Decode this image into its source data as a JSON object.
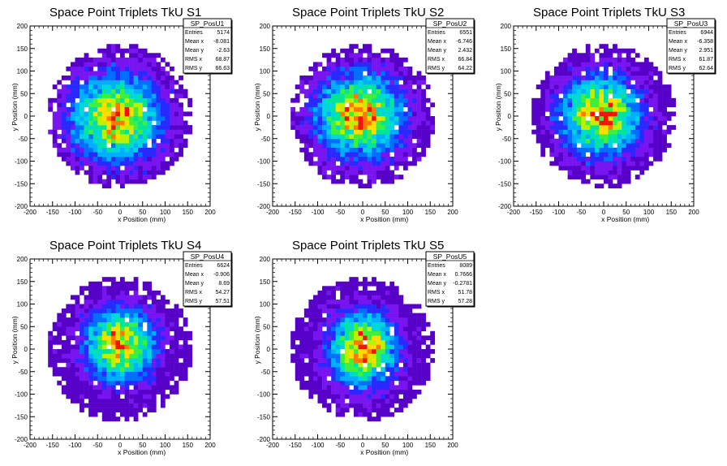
{
  "chart_data": [
    {
      "type": "heatmap",
      "title": "Space Point Triplets TkU S1",
      "xlabel": "x Position (mm)",
      "ylabel": "y Position (mm)",
      "xlim": [
        -200,
        200
      ],
      "ylim": [
        -200,
        200
      ],
      "xticks": [
        -200,
        -150,
        -100,
        -50,
        0,
        50,
        100,
        150,
        200
      ],
      "yticks": [
        -200,
        -150,
        -100,
        -50,
        0,
        50,
        100,
        150,
        200
      ],
      "stats": {
        "name": "SP_PosU1",
        "rows": [
          [
            "Entries",
            "5174"
          ],
          [
            "Mean x",
            "-8.081"
          ],
          [
            "Mean y",
            "-2.63"
          ],
          [
            "RMS x",
            "68.87"
          ],
          [
            "RMS y",
            "66.63"
          ]
        ]
      },
      "distribution": {
        "center_x": -8.081,
        "center_y": -2.63,
        "rms_x": 68.87,
        "rms_y": 66.63,
        "radius": 160
      }
    },
    {
      "type": "heatmap",
      "title": "Space Point Triplets TkU S2",
      "xlabel": "x Position (mm)",
      "ylabel": "y Position (mm)",
      "xlim": [
        -200,
        200
      ],
      "ylim": [
        -200,
        200
      ],
      "xticks": [
        -200,
        -150,
        -100,
        -50,
        0,
        50,
        100,
        150,
        200
      ],
      "yticks": [
        -200,
        -150,
        -100,
        -50,
        0,
        50,
        100,
        150,
        200
      ],
      "stats": {
        "name": "SP_PosU2",
        "rows": [
          [
            "Entries",
            "6551"
          ],
          [
            "Mean x",
            "-6.746"
          ],
          [
            "Mean y",
            "2.432"
          ],
          [
            "RMS x",
            "66.84"
          ],
          [
            "RMS y",
            "64.22"
          ]
        ]
      },
      "distribution": {
        "center_x": -6.746,
        "center_y": 2.432,
        "rms_x": 66.84,
        "rms_y": 64.22,
        "radius": 160
      }
    },
    {
      "type": "heatmap",
      "title": "Space Point Triplets TkU S3",
      "xlabel": "x Position (mm)",
      "ylabel": "y Position (mm)",
      "xlim": [
        -200,
        200
      ],
      "ylim": [
        -200,
        200
      ],
      "xticks": [
        -200,
        -150,
        -100,
        -50,
        0,
        50,
        100,
        150,
        200
      ],
      "yticks": [
        -200,
        -150,
        -100,
        -50,
        0,
        50,
        100,
        150,
        200
      ],
      "stats": {
        "name": "SP_PosU3",
        "rows": [
          [
            "Entries",
            "6944"
          ],
          [
            "Mean x",
            "-6.358"
          ],
          [
            "Mean y",
            "2.951"
          ],
          [
            "RMS x",
            "61.87"
          ],
          [
            "RMS y",
            "62.64"
          ]
        ]
      },
      "distribution": {
        "center_x": -6.358,
        "center_y": 2.951,
        "rms_x": 61.87,
        "rms_y": 62.64,
        "radius": 160
      }
    },
    {
      "type": "heatmap",
      "title": "Space Point Triplets TkU S4",
      "xlabel": "x Position (mm)",
      "ylabel": "y Position (mm)",
      "xlim": [
        -200,
        200
      ],
      "ylim": [
        -200,
        200
      ],
      "xticks": [
        -200,
        -150,
        -100,
        -50,
        0,
        50,
        100,
        150,
        200
      ],
      "yticks": [
        -200,
        -150,
        -100,
        -50,
        0,
        50,
        100,
        150,
        200
      ],
      "stats": {
        "name": "SP_PosU4",
        "rows": [
          [
            "Entries",
            "6624"
          ],
          [
            "Mean x",
            "-0.906"
          ],
          [
            "Mean y",
            "8.69"
          ],
          [
            "RMS x",
            "54.27"
          ],
          [
            "RMS y",
            "57.51"
          ]
        ]
      },
      "distribution": {
        "center_x": -0.906,
        "center_y": 8.69,
        "rms_x": 54.27,
        "rms_y": 57.51,
        "radius": 160
      }
    },
    {
      "type": "heatmap",
      "title": "Space Point Triplets TkU S5",
      "xlabel": "x Position (mm)",
      "ylabel": "y Position (mm)",
      "xlim": [
        -200,
        200
      ],
      "ylim": [
        -200,
        200
      ],
      "xticks": [
        -200,
        -150,
        -100,
        -50,
        0,
        50,
        100,
        150,
        200
      ],
      "yticks": [
        -200,
        -150,
        -100,
        -50,
        0,
        50,
        100,
        150,
        200
      ],
      "stats": {
        "name": "SP_PosU5",
        "rows": [
          [
            "Entries",
            "8089"
          ],
          [
            "Mean x",
            "0.7666"
          ],
          [
            "Mean y",
            "-0.2781"
          ],
          [
            "RMS x",
            "51.78"
          ],
          [
            "RMS y",
            "57.28"
          ]
        ]
      },
      "distribution": {
        "center_x": 0.7666,
        "center_y": -0.2781,
        "rms_x": 51.78,
        "rms_y": 57.28,
        "radius": 160
      }
    }
  ]
}
